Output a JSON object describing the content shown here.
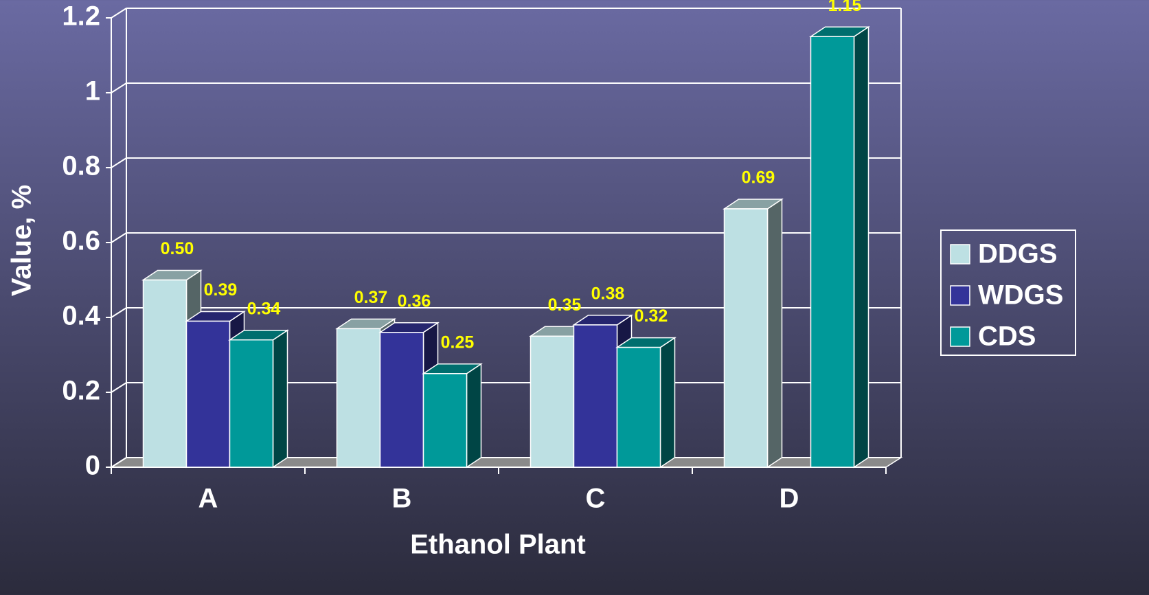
{
  "chart_data": {
    "type": "bar3d",
    "x_label": "Ethanol Plant",
    "y_label": "Value, %",
    "categories": [
      "A",
      "B",
      "C",
      "D"
    ],
    "series": [
      {
        "name": "DDGS",
        "color": "#bde0e3",
        "values": [
          0.5,
          0.37,
          0.35,
          0.69
        ],
        "value_labels": [
          "0.50",
          "0.37",
          "0.35",
          "0.69"
        ]
      },
      {
        "name": "WDGS",
        "color": "#333399",
        "values": [
          0.39,
          0.36,
          0.38,
          null
        ],
        "value_labels": [
          "0.39",
          "0.36",
          "0.38",
          null
        ]
      },
      {
        "name": "CDS",
        "color": "#009999",
        "values": [
          0.34,
          0.25,
          0.32,
          1.15
        ],
        "value_labels": [
          "0.34",
          "0.25",
          "0.32",
          "1.15"
        ]
      }
    ],
    "ylim": [
      0,
      1.2
    ],
    "yticks": [
      0,
      0.2,
      0.4,
      0.6,
      0.8,
      1,
      1.2
    ],
    "grid": true,
    "legend": "right"
  }
}
